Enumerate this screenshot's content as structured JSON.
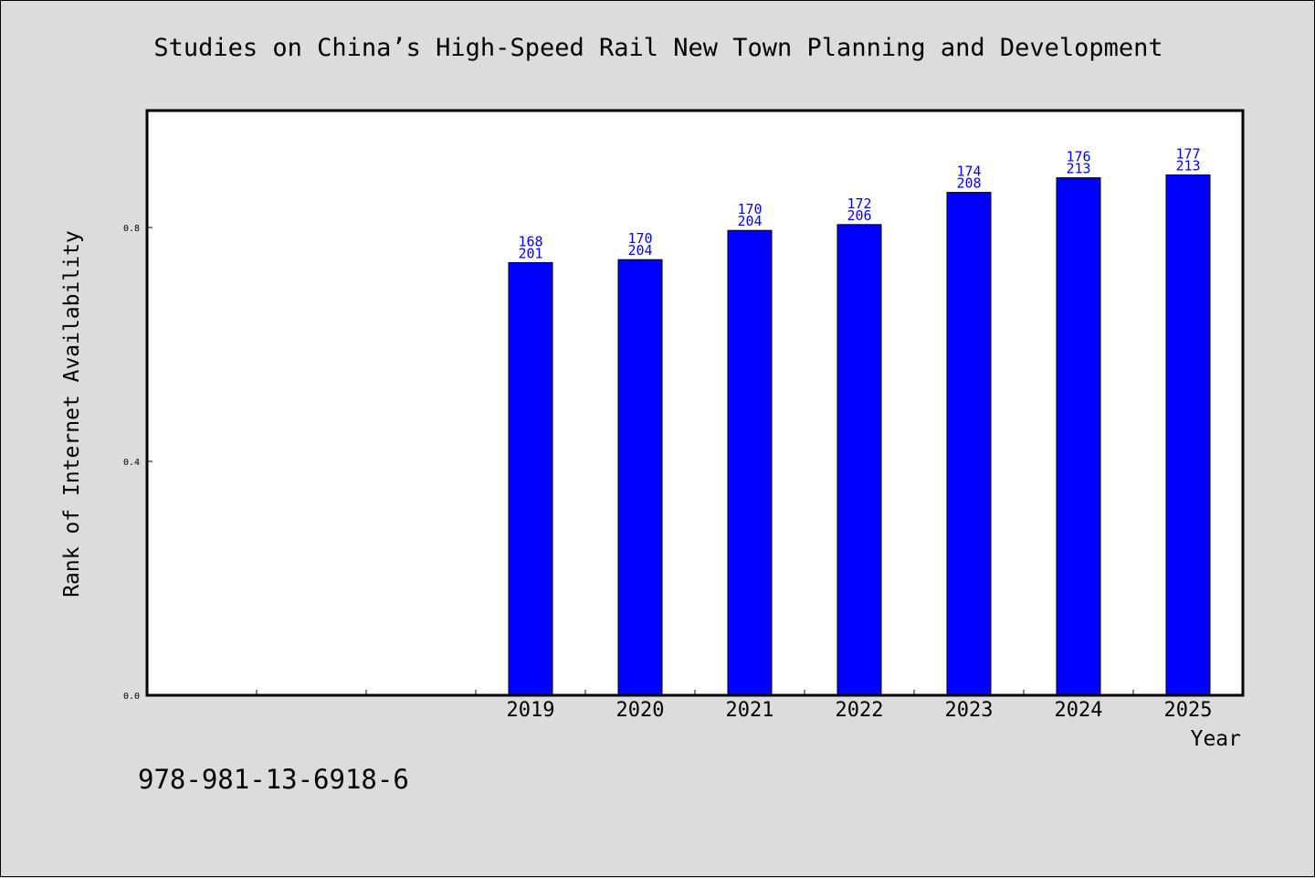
{
  "page": {
    "background": "#dcdcdc",
    "plot_background": "#ffffff",
    "isbn": "978-981-13-6918-6"
  },
  "chart_data": {
    "type": "bar",
    "title": "Studies on China’s High-Speed Rail New Town Planning and Development",
    "xlabel": "Year",
    "ylabel": "Rank of Internet Availability",
    "categories": [
      "",
      "",
      "",
      "2019",
      "2020",
      "2021",
      "2022",
      "2023",
      "2024",
      "2025"
    ],
    "series": [
      {
        "color": "#0000ff",
        "values": [
          null,
          null,
          null,
          0.74,
          0.745,
          0.795,
          0.805,
          0.86,
          0.885,
          0.89
        ]
      }
    ],
    "bar_labels": [
      null,
      null,
      null,
      [
        "168",
        "201"
      ],
      [
        "170",
        "204"
      ],
      [
        "170",
        "204"
      ],
      [
        "172",
        "206"
      ],
      [
        "174",
        "208"
      ],
      [
        "176",
        "213"
      ],
      [
        "177",
        "213"
      ]
    ],
    "yticks": [
      "0.0",
      "0.4",
      "0.8"
    ],
    "ytick_values": [
      0.0,
      0.4,
      0.8
    ],
    "ylim": [
      0,
      1.0
    ],
    "grid": false,
    "legend": null
  }
}
